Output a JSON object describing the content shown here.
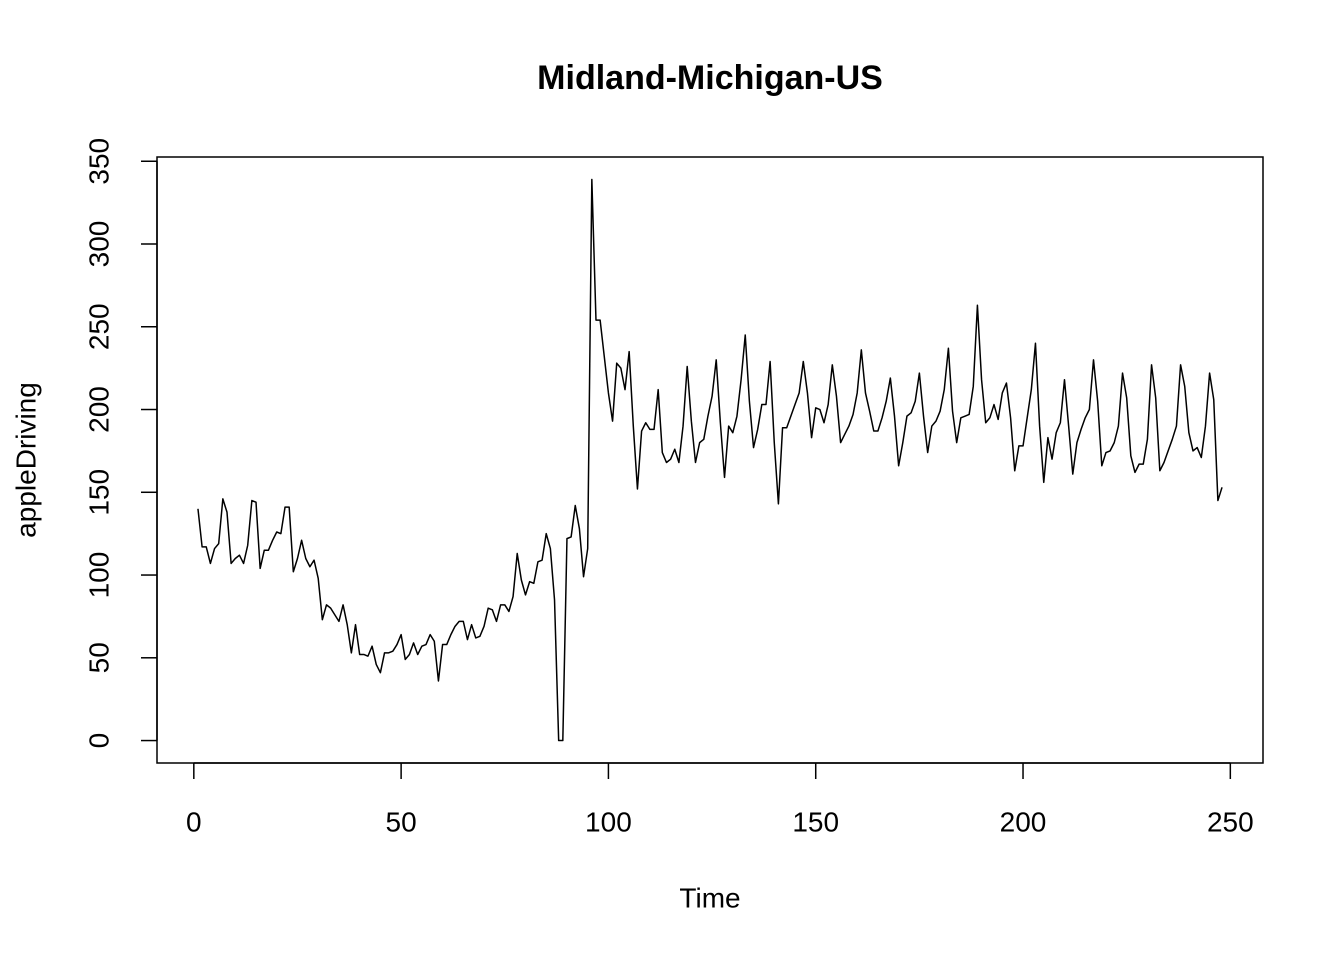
{
  "chart_data": {
    "type": "line",
    "title": "Midland-Michigan-US",
    "x_label": "Time",
    "y_label": "appleDriving",
    "x": [
      1,
      2,
      3,
      4,
      5,
      6,
      7,
      8,
      9,
      10,
      11,
      12,
      13,
      14,
      15,
      16,
      17,
      18,
      19,
      20,
      21,
      22,
      23,
      24,
      25,
      26,
      27,
      28,
      29,
      30,
      31,
      32,
      33,
      34,
      35,
      36,
      37,
      38,
      39,
      40,
      41,
      42,
      43,
      44,
      45,
      46,
      47,
      48,
      49,
      50,
      51,
      52,
      53,
      54,
      55,
      56,
      57,
      58,
      59,
      60,
      61,
      62,
      63,
      64,
      65,
      66,
      67,
      68,
      69,
      70,
      71,
      72,
      73,
      74,
      75,
      76,
      77,
      78,
      79,
      80,
      81,
      82,
      83,
      84,
      85,
      86,
      87,
      88,
      89,
      90,
      91,
      92,
      93,
      94,
      95,
      96,
      97,
      98,
      99,
      100,
      101,
      102,
      103,
      104,
      105,
      106,
      107,
      108,
      109,
      110,
      111,
      112,
      113,
      114,
      115,
      116,
      117,
      118,
      119,
      120,
      121,
      122,
      123,
      124,
      125,
      126,
      127,
      128,
      129,
      130,
      131,
      132,
      133,
      134,
      135,
      136,
      137,
      138,
      139,
      140,
      141,
      142,
      143,
      144,
      145,
      146,
      147,
      148,
      149,
      150,
      151,
      152,
      153,
      154,
      155,
      156,
      157,
      158,
      159,
      160,
      161,
      162,
      163,
      164,
      165,
      166,
      167,
      168,
      169,
      170,
      171,
      172,
      173,
      174,
      175,
      176,
      177,
      178,
      179,
      180,
      181,
      182,
      183,
      184,
      185,
      186,
      187,
      188,
      189,
      190,
      191,
      192,
      193,
      194,
      195,
      196,
      197,
      198,
      199,
      200,
      201,
      202,
      203,
      204,
      205,
      206,
      207,
      208,
      209,
      210,
      211,
      212,
      213,
      214,
      215,
      216,
      217,
      218,
      219,
      220,
      221,
      222,
      223,
      224,
      225,
      226,
      227,
      228,
      229,
      230,
      231,
      232,
      233,
      234,
      235,
      236,
      237,
      238,
      239,
      240,
      241,
      242,
      243,
      244,
      245,
      246,
      247,
      248
    ],
    "series": [
      {
        "name": "appleDriving",
        "color": "#000000",
        "values": [
          140,
          117,
          117,
          107,
          116,
          119,
          146,
          138,
          107,
          110,
          112,
          107,
          118,
          145,
          144,
          104,
          115,
          115,
          121,
          126,
          125,
          141,
          141,
          102,
          110,
          121,
          110,
          105,
          109,
          98,
          73,
          82,
          80,
          76,
          72,
          82,
          70,
          53,
          70,
          52,
          52,
          51,
          57,
          46,
          41,
          53,
          53,
          54,
          58,
          64,
          49,
          52,
          59,
          52,
          57,
          58,
          64,
          60,
          36,
          58,
          58,
          64,
          69,
          72,
          72,
          61,
          70,
          62,
          63,
          69,
          80,
          79,
          72,
          82,
          82,
          78,
          87,
          113,
          97,
          88,
          96,
          95,
          108,
          109,
          125,
          116,
          85,
          0,
          0,
          122,
          123,
          142,
          128,
          99,
          116,
          339,
          254,
          254,
          232,
          210,
          193,
          228,
          225,
          212,
          235,
          190,
          152,
          187,
          192,
          188,
          188,
          212,
          174,
          168,
          170,
          176,
          168,
          190,
          226,
          193,
          168,
          180,
          182,
          196,
          208,
          230,
          192,
          159,
          190,
          186,
          196,
          218,
          245,
          205,
          177,
          188,
          203,
          203,
          229,
          180,
          143,
          189,
          189,
          196,
          203,
          210,
          229,
          210,
          183,
          201,
          200,
          192,
          203,
          227,
          208,
          180,
          185,
          190,
          197,
          210,
          236,
          210,
          199,
          187,
          187,
          195,
          205,
          219,
          196,
          166,
          180,
          196,
          198,
          205,
          222,
          196,
          174,
          190,
          193,
          199,
          212,
          237,
          199,
          180,
          195,
          196,
          197,
          214,
          263,
          218,
          192,
          195,
          203,
          194,
          210,
          216,
          195,
          163,
          178,
          178,
          195,
          212,
          240,
          190,
          156,
          183,
          170,
          186,
          192,
          218,
          190,
          161,
          180,
          188,
          195,
          200,
          230,
          205,
          166,
          174,
          175,
          180,
          190,
          222,
          207,
          172,
          162,
          167,
          167,
          182,
          227,
          207,
          163,
          168,
          175,
          182,
          190,
          227,
          214,
          186,
          175,
          177,
          171,
          190,
          222,
          206,
          145,
          153
        ]
      }
    ],
    "xlim": [
      -8.88,
      257.88
    ],
    "ylim": [
      -13.56,
      352.56
    ],
    "xticks": [
      0,
      50,
      100,
      150,
      200,
      250
    ],
    "yticks": [
      0,
      50,
      100,
      150,
      200,
      250,
      300,
      350
    ]
  }
}
